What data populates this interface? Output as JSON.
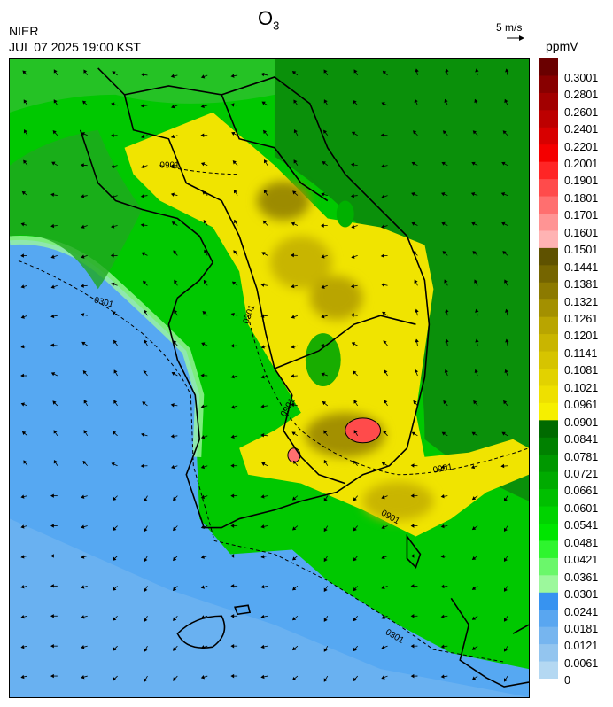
{
  "header": {
    "agency": "NIER",
    "datetime": "JUL 07 2025 19:00 KST",
    "species_base": "O",
    "species_sub": "3",
    "unit": "ppmV"
  },
  "wind_reference": {
    "label": "5 m/s"
  },
  "legend": {
    "labels": [
      "0.3001",
      "0.2801",
      "0.2601",
      "0.2401",
      "0.2201",
      "0.2001",
      "0.1901",
      "0.1801",
      "0.1701",
      "0.1601",
      "0.1501",
      "0.1441",
      "0.1381",
      "0.1321",
      "0.1261",
      "0.1201",
      "0.1141",
      "0.1081",
      "0.1021",
      "0.0961",
      "0.0901",
      "0.0841",
      "0.0781",
      "0.0721",
      "0.0661",
      "0.0601",
      "0.0541",
      "0.0481",
      "0.0421",
      "0.0361",
      "0.0301",
      "0.0241",
      "0.0181",
      "0.0121",
      "0.0061",
      "0"
    ],
    "colors": [
      "#6a0000",
      "#880000",
      "#a20000",
      "#bd0000",
      "#d80000",
      "#f40000",
      "#ff2525",
      "#ff4b4b",
      "#ff6f6f",
      "#ff9494",
      "#ffb3b3",
      "#5f5200",
      "#756500",
      "#8c7a00",
      "#a39000",
      "#b9a500",
      "#c9b500",
      "#d6c400",
      "#e2d200",
      "#eee000",
      "#f6ef00",
      "#006a00",
      "#008100",
      "#009800",
      "#00ab00",
      "#00bf00",
      "#00d300",
      "#00e500",
      "#2ef52e",
      "#6bf76b",
      "#9cf89c",
      "#3793f0",
      "#59a6f0",
      "#76b5ef",
      "#93c5ef",
      "#b4d8f2"
    ]
  },
  "contour_labels": [
    "0301",
    "0901",
    "0301",
    "0901",
    "0901",
    "0901",
    "0301"
  ]
}
